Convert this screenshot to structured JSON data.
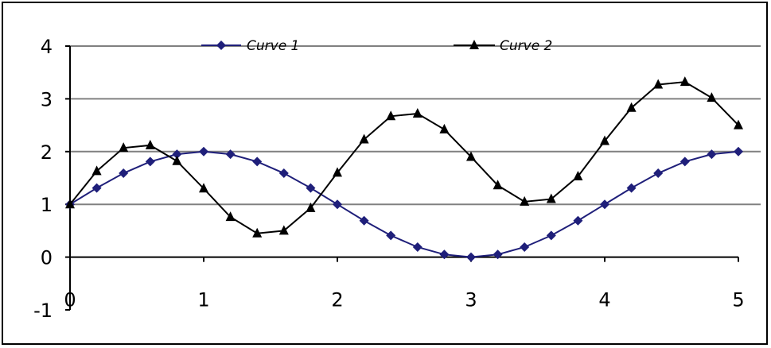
{
  "chart_data": {
    "type": "line",
    "title": "",
    "xlabel": "",
    "ylabel": "",
    "xlim": [
      0,
      5
    ],
    "ylim": [
      -1,
      4
    ],
    "x_ticks": [
      0,
      1,
      2,
      3,
      4,
      5
    ],
    "y_ticks": [
      -1,
      0,
      1,
      2,
      3,
      4
    ],
    "x_tick_labels": [
      "0",
      "1",
      "2",
      "3",
      "4",
      "5"
    ],
    "y_tick_labels": [
      "-1",
      "0",
      "1",
      "2",
      "3",
      "4"
    ],
    "grid": "horizontal",
    "legend_position": "top",
    "x": [
      0,
      0.2,
      0.4,
      0.6,
      0.8,
      1.0,
      1.2,
      1.4,
      1.6,
      1.8,
      2.0,
      2.2,
      2.4,
      2.6,
      2.8,
      3.0,
      3.2,
      3.4,
      3.6,
      3.8,
      4.0,
      4.2,
      4.4,
      4.6,
      4.8,
      5.0
    ],
    "series": [
      {
        "name": "Curve 1",
        "color": "#1f1f7a",
        "marker": "diamond",
        "values": [
          1.0,
          1.31,
          1.59,
          1.81,
          1.95,
          2.0,
          1.95,
          1.81,
          1.59,
          1.31,
          1.0,
          0.69,
          0.41,
          0.19,
          0.05,
          0.0,
          0.05,
          0.19,
          0.41,
          0.69,
          1.0,
          1.31,
          1.59,
          1.81,
          1.95,
          2.0
        ]
      },
      {
        "name": "Curve 2",
        "color": "#000000",
        "marker": "triangle",
        "values": [
          1.0,
          1.63,
          2.07,
          2.12,
          1.82,
          1.3,
          0.76,
          0.45,
          0.5,
          0.93,
          1.6,
          2.23,
          2.67,
          2.72,
          2.42,
          1.9,
          1.36,
          1.05,
          1.1,
          1.53,
          2.2,
          2.83,
          3.27,
          3.32,
          3.02,
          2.5
        ]
      }
    ]
  }
}
